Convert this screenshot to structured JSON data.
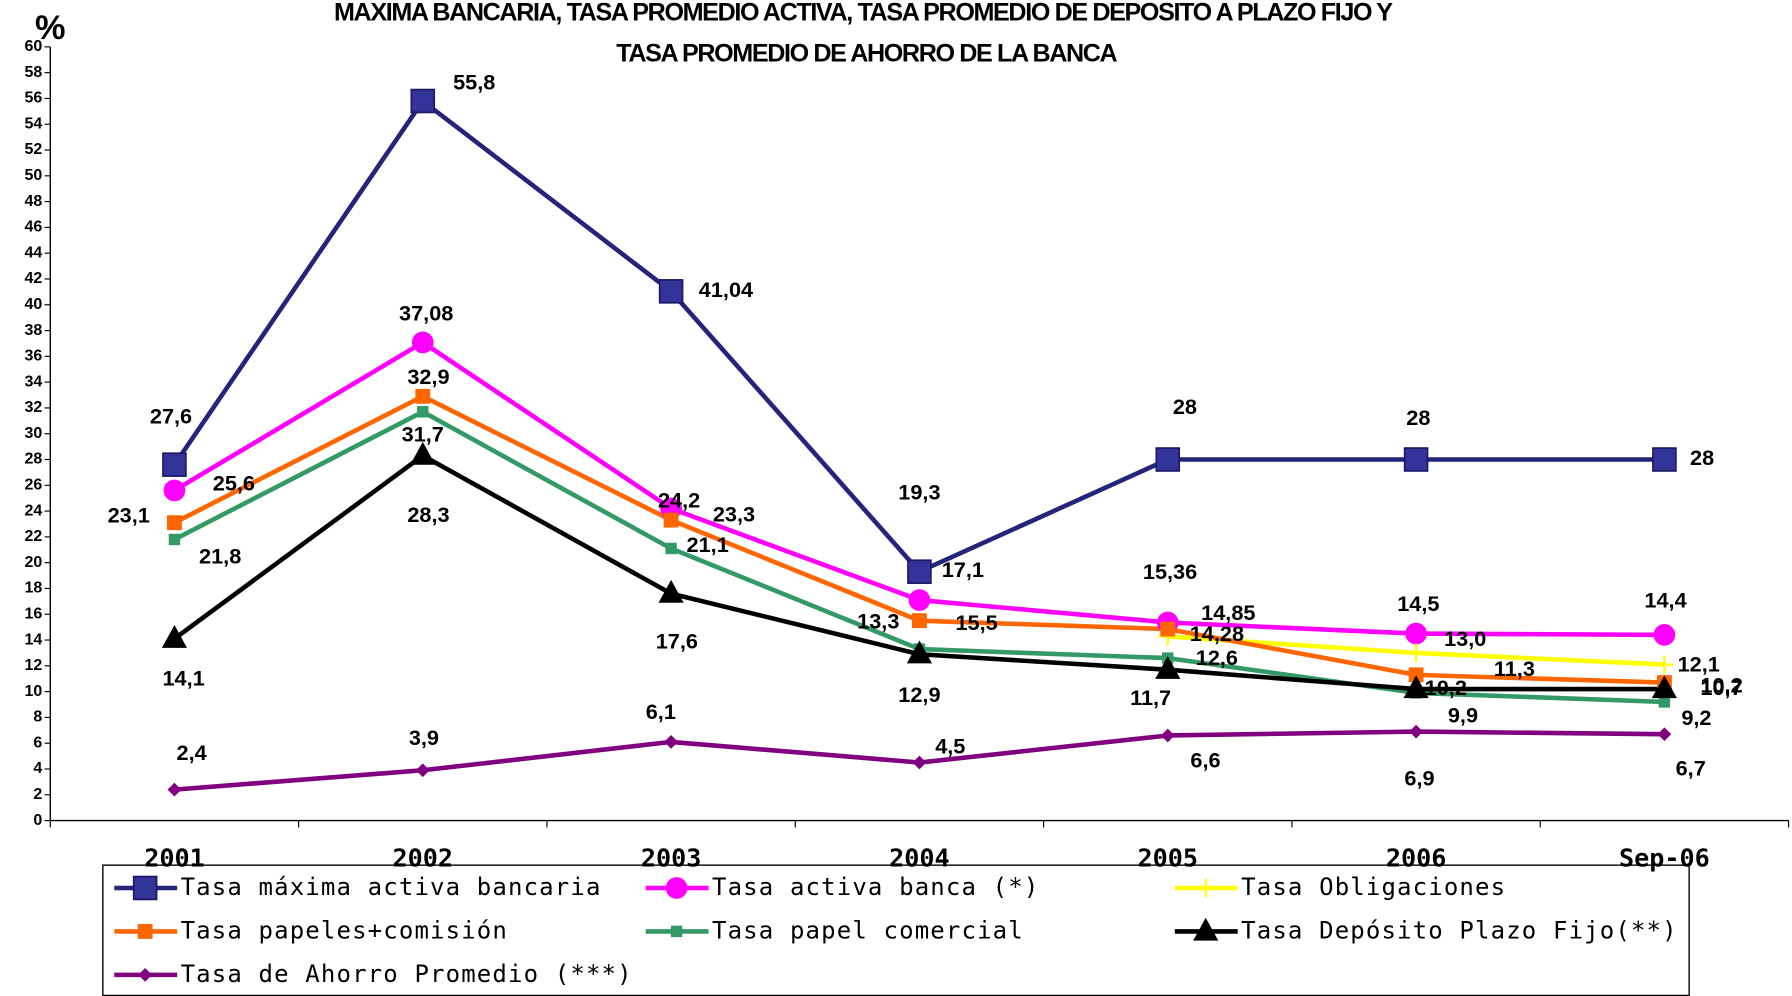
{
  "chart_data": {
    "type": "line",
    "title": [
      "MAXIMA BANCARIA, TASA PROMEDIO ACTIVA, TASA PROMEDIO DE DEPOSITO A PLAZO FIJO Y",
      "TASA PROMEDIO DE AHORRO DE LA BANCA"
    ],
    "y_label": "%",
    "categories": [
      "2001",
      "2002",
      "2003",
      "2004",
      "2005",
      "2006",
      "Sep-06"
    ],
    "ylim": [
      0,
      60
    ],
    "yticks": [
      0,
      2,
      4,
      6,
      8,
      10,
      12,
      14,
      16,
      18,
      20,
      22,
      24,
      26,
      28,
      30,
      32,
      34,
      36,
      38,
      40,
      42,
      44,
      46,
      48,
      50,
      52,
      54,
      56,
      58,
      60
    ],
    "series": [
      {
        "name": "Tasa máxima activa bancaria",
        "color": "#24247a",
        "values": [
          27.6,
          55.8,
          41.04,
          19.3,
          28,
          28,
          28
        ],
        "value_labels": [
          "27,6",
          "55,8",
          "41,04",
          "19,3",
          "28",
          "28",
          "28"
        ]
      },
      {
        "name": "Tasa activa banca (*)",
        "color": "#ff00ff",
        "values": [
          25.6,
          37.08,
          24.2,
          17.1,
          15.36,
          14.5,
          14.4
        ],
        "value_labels": [
          "25,6",
          "37,08",
          "24,2",
          "17,1",
          "15,36",
          "14,5",
          "14,4"
        ]
      },
      {
        "name": "Tasa Obligaciones",
        "color": "#ffff00",
        "values": [
          null,
          null,
          null,
          null,
          14.28,
          13.0,
          12.1
        ],
        "value_labels": [
          null,
          null,
          null,
          null,
          "14,28",
          "13,0",
          "12,1"
        ]
      },
      {
        "name": "Tasa papeles+comisión",
        "color": "#ff6600",
        "values": [
          23.1,
          32.9,
          23.3,
          15.5,
          14.85,
          11.3,
          10.7
        ],
        "value_labels": [
          "23,1",
          "32,9",
          "23,3",
          "15,5",
          "14,85",
          "11,3",
          "10,7"
        ]
      },
      {
        "name": "Tasa papel comercial",
        "color": "#339966",
        "values": [
          21.8,
          31.7,
          21.1,
          13.3,
          12.6,
          9.9,
          9.2
        ],
        "value_labels": [
          "21,8",
          "31,7",
          "21,1",
          "13,3",
          "12,6",
          "9,9",
          "9,2"
        ]
      },
      {
        "name": "Tasa Depósito Plazo Fijo(**)",
        "color": "#000000",
        "values": [
          14.1,
          28.3,
          17.6,
          12.9,
          11.7,
          10.2,
          10.2
        ],
        "value_labels": [
          "14,1",
          "28,3",
          "17,6",
          "12,9",
          "11,7",
          "10,2",
          "10,2"
        ]
      },
      {
        "name": "Tasa de Ahorro Promedio (***)",
        "color": "#800080",
        "values": [
          2.4,
          3.9,
          6.1,
          4.5,
          6.6,
          6.9,
          6.7
        ],
        "value_labels": [
          "2,4",
          "3,9",
          "6,1",
          "4,5",
          "6,6",
          "6,9",
          "6,7"
        ]
      }
    ]
  }
}
